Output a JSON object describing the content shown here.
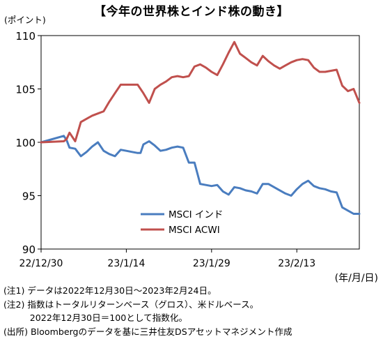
{
  "title": "【今年の世界株とインド株の動き】",
  "unit_label": "(ポイント)",
  "chart_data": {
    "type": "line",
    "title": "【今年の世界株とインド株の動き】",
    "ylabel": "(ポイント)",
    "xlabel": "(年/月/日)",
    "ylim": [
      90,
      110
    ],
    "yticks": [
      90,
      95,
      100,
      105,
      110
    ],
    "x_tick_labels": [
      "22/12/30",
      "23/1/14",
      "23/1/29",
      "23/2/13"
    ],
    "x_tick_days": [
      0,
      15,
      30,
      45
    ],
    "x_range_days": [
      0,
      56
    ],
    "grid": false,
    "legend_position": "bottom-left",
    "series": [
      {
        "name": "MSCI インド",
        "color": "#4a7dbf",
        "x": [
          0,
          4,
          4.5,
          5,
          6,
          7,
          8,
          9,
          10,
          11,
          12,
          13,
          14,
          15,
          16,
          17,
          17.5,
          18,
          19,
          20,
          21,
          22,
          23,
          24,
          25,
          26,
          27,
          28,
          29,
          30,
          31,
          32,
          33,
          34,
          35,
          36,
          37,
          38,
          39,
          40,
          41,
          42,
          43,
          44,
          45,
          46,
          47,
          48,
          49,
          50,
          51,
          52,
          53,
          54,
          55,
          56
        ],
        "values": [
          100,
          100.6,
          100.2,
          99.5,
          99.4,
          98.7,
          99.1,
          99.6,
          100.0,
          99.2,
          98.9,
          98.7,
          99.3,
          99.2,
          99.1,
          99.0,
          99.0,
          99.8,
          100.1,
          99.7,
          99.2,
          99.3,
          99.5,
          99.6,
          99.5,
          98.1,
          98.1,
          96.1,
          96.0,
          95.9,
          96.0,
          95.4,
          95.1,
          95.8,
          95.7,
          95.5,
          95.4,
          95.2,
          96.1,
          96.1,
          95.8,
          95.5,
          95.2,
          95.0,
          95.6,
          96.1,
          96.4,
          95.9,
          95.7,
          95.6,
          95.4,
          95.3,
          93.9,
          93.6,
          93.3,
          93.3
        ]
      },
      {
        "name": "MSCI ACWI",
        "color": "#c0504d",
        "x": [
          0,
          4,
          4.5,
          5,
          6,
          7,
          8,
          9,
          10,
          11,
          12,
          13,
          14,
          15,
          16,
          17,
          18,
          19,
          20,
          21,
          22,
          23,
          24,
          25,
          26,
          27,
          28,
          29,
          30,
          31,
          32,
          33,
          34,
          35,
          36,
          37,
          38,
          39,
          40,
          41,
          42,
          43,
          44,
          45,
          46,
          47,
          48,
          49,
          50,
          51,
          52,
          53,
          54,
          55,
          56
        ],
        "values": [
          100,
          100.1,
          100.3,
          100.9,
          100.1,
          101.9,
          102.2,
          102.5,
          102.7,
          102.9,
          103.8,
          104.6,
          105.4,
          105.4,
          105.4,
          105.4,
          104.6,
          103.7,
          105.0,
          105.4,
          105.7,
          106.1,
          106.2,
          106.1,
          106.2,
          107.1,
          107.3,
          107.0,
          106.6,
          106.3,
          107.3,
          108.4,
          109.4,
          108.3,
          107.9,
          107.5,
          107.2,
          108.1,
          107.6,
          107.2,
          106.9,
          107.2,
          107.5,
          107.7,
          107.8,
          107.7,
          107.0,
          106.6,
          106.6,
          106.7,
          106.8,
          105.3,
          104.8,
          105.0,
          103.7
        ]
      }
    ]
  },
  "notes": [
    "(注1) データは2022年12月30日～2023年2月24日。",
    "(注2) 指数はトータルリターンベース（グロス）、米ドルベース。",
    "　　　2022年12月30日＝100として指数化。",
    "(出所) Bloombergのデータを基に三井住友DSアセットマネジメント作成"
  ]
}
